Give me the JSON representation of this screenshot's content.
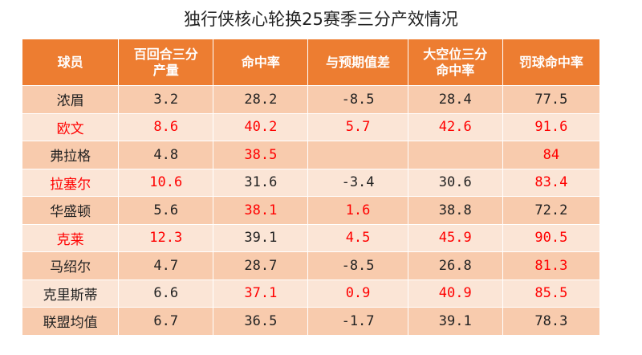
{
  "title": "独行侠核心轮换25赛季三分产效情况",
  "colors": {
    "header_bg": "#ed7d31",
    "row_dark": "#f8cbad",
    "row_light": "#fbe5d6",
    "highlight": "#ff0000"
  },
  "table": {
    "headers": [
      "球员",
      "百回合三分产量",
      "命中率",
      "与预期值差",
      "大空位三分命中率",
      "罚球命中率"
    ],
    "header_lines": [
      [
        "球员"
      ],
      [
        "百回合三分",
        "产量"
      ],
      [
        "命中率"
      ],
      [
        "与预期值差"
      ],
      [
        "大空位三分",
        "命中率"
      ],
      [
        "罚球命中率"
      ]
    ],
    "rows": [
      [
        "浓眉",
        "3.2",
        "28.2",
        "-8.5",
        "28.4",
        "77.5"
      ],
      [
        "欧文",
        "8.6",
        "40.2",
        "5.7",
        "42.6",
        "91.6"
      ],
      [
        "弗拉格",
        "4.8",
        "38.5",
        "",
        "",
        "84"
      ],
      [
        "拉塞尔",
        "10.6",
        "31.6",
        "-3.4",
        "30.6",
        "83.4"
      ],
      [
        "华盛顿",
        "5.6",
        "38.1",
        "1.6",
        "38.8",
        "72.2"
      ],
      [
        "克莱",
        "12.3",
        "39.1",
        "4.5",
        "45.9",
        "90.5"
      ],
      [
        "马绍尔",
        "4.7",
        "28.7",
        "-8.5",
        "26.8",
        "81.3"
      ],
      [
        "克里斯蒂",
        "6.6",
        "37.1",
        "0.9",
        "40.9",
        "85.5"
      ],
      [
        "联盟均值",
        "6.7",
        "36.5",
        "-1.7",
        "39.1",
        "78.3"
      ]
    ],
    "highlighted_cells": [
      [
        false,
        false,
        false,
        false,
        false,
        false
      ],
      [
        true,
        true,
        true,
        true,
        true,
        true
      ],
      [
        false,
        false,
        true,
        false,
        false,
        true
      ],
      [
        true,
        true,
        false,
        false,
        false,
        true
      ],
      [
        false,
        false,
        true,
        true,
        false,
        false
      ],
      [
        true,
        true,
        false,
        true,
        true,
        true
      ],
      [
        false,
        false,
        false,
        false,
        false,
        true
      ],
      [
        false,
        false,
        true,
        true,
        true,
        true
      ],
      [
        false,
        false,
        false,
        false,
        false,
        false
      ]
    ]
  }
}
